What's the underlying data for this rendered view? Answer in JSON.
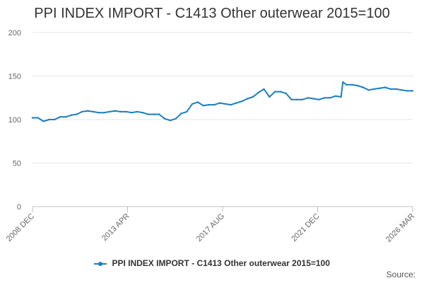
{
  "chart_data": {
    "type": "line",
    "title": "PPI INDEX IMPORT - C1413 Other outerwear 2015=100",
    "xlabel": "",
    "ylabel": "",
    "ylim": [
      0,
      200
    ],
    "yticks": [
      0,
      50,
      100,
      150,
      200
    ],
    "x_tick_labels": [
      "2008 DEC",
      "2013 APR",
      "2017 AUG",
      "2021 DEC",
      "2026 MAR"
    ],
    "x_range": [
      "2008-12",
      "2026-03"
    ],
    "grid": true,
    "legend": "bottom",
    "series": [
      {
        "name": "PPI INDEX IMPORT - C1413 Other outerwear 2015=100",
        "color": "#1a7fc1",
        "points": [
          [
            "2008-12",
            102
          ],
          [
            "2009-03",
            102
          ],
          [
            "2009-06",
            98
          ],
          [
            "2009-09",
            100
          ],
          [
            "2009-12",
            100
          ],
          [
            "2010-03",
            103
          ],
          [
            "2010-06",
            103
          ],
          [
            "2010-09",
            105
          ],
          [
            "2010-12",
            106
          ],
          [
            "2011-03",
            109
          ],
          [
            "2011-06",
            110
          ],
          [
            "2011-09",
            109
          ],
          [
            "2011-12",
            108
          ],
          [
            "2012-03",
            108
          ],
          [
            "2012-06",
            109
          ],
          [
            "2012-09",
            110
          ],
          [
            "2012-12",
            109
          ],
          [
            "2013-03",
            109
          ],
          [
            "2013-06",
            108
          ],
          [
            "2013-09",
            109
          ],
          [
            "2013-12",
            108
          ],
          [
            "2014-03",
            106
          ],
          [
            "2014-06",
            106
          ],
          [
            "2014-09",
            106
          ],
          [
            "2014-12",
            101
          ],
          [
            "2015-03",
            99
          ],
          [
            "2015-06",
            101
          ],
          [
            "2015-09",
            107
          ],
          [
            "2015-12",
            109
          ],
          [
            "2016-03",
            118
          ],
          [
            "2016-06",
            120
          ],
          [
            "2016-09",
            116
          ],
          [
            "2016-12",
            117
          ],
          [
            "2017-03",
            117
          ],
          [
            "2017-06",
            119
          ],
          [
            "2017-09",
            118
          ],
          [
            "2017-12",
            117
          ],
          [
            "2018-03",
            119
          ],
          [
            "2018-06",
            121
          ],
          [
            "2018-09",
            124
          ],
          [
            "2018-12",
            126
          ],
          [
            "2019-03",
            131
          ],
          [
            "2019-06",
            135
          ],
          [
            "2019-09",
            126
          ],
          [
            "2019-12",
            132
          ],
          [
            "2020-03",
            132
          ],
          [
            "2020-06",
            130
          ],
          [
            "2020-09",
            123
          ],
          [
            "2020-12",
            123
          ],
          [
            "2021-03",
            123
          ],
          [
            "2021-06",
            125
          ],
          [
            "2021-09",
            124
          ],
          [
            "2021-12",
            123
          ],
          [
            "2022-03",
            125
          ],
          [
            "2022-06",
            125
          ],
          [
            "2022-09",
            127
          ],
          [
            "2022-12",
            126
          ],
          [
            "2023-01",
            143
          ],
          [
            "2023-03",
            140
          ],
          [
            "2023-06",
            140
          ],
          [
            "2023-09",
            139
          ],
          [
            "2023-12",
            137
          ],
          [
            "2024-03",
            134
          ],
          [
            "2024-06",
            135
          ],
          [
            "2024-09",
            136
          ],
          [
            "2024-12",
            137
          ],
          [
            "2025-03",
            135
          ],
          [
            "2025-06",
            135
          ],
          [
            "2025-09",
            134
          ],
          [
            "2025-12",
            133
          ],
          [
            "2026-03",
            133
          ]
        ]
      }
    ]
  },
  "legend_label": "PPI INDEX IMPORT - C1413 Other outerwear 2015=100",
  "source_label": "Source:"
}
